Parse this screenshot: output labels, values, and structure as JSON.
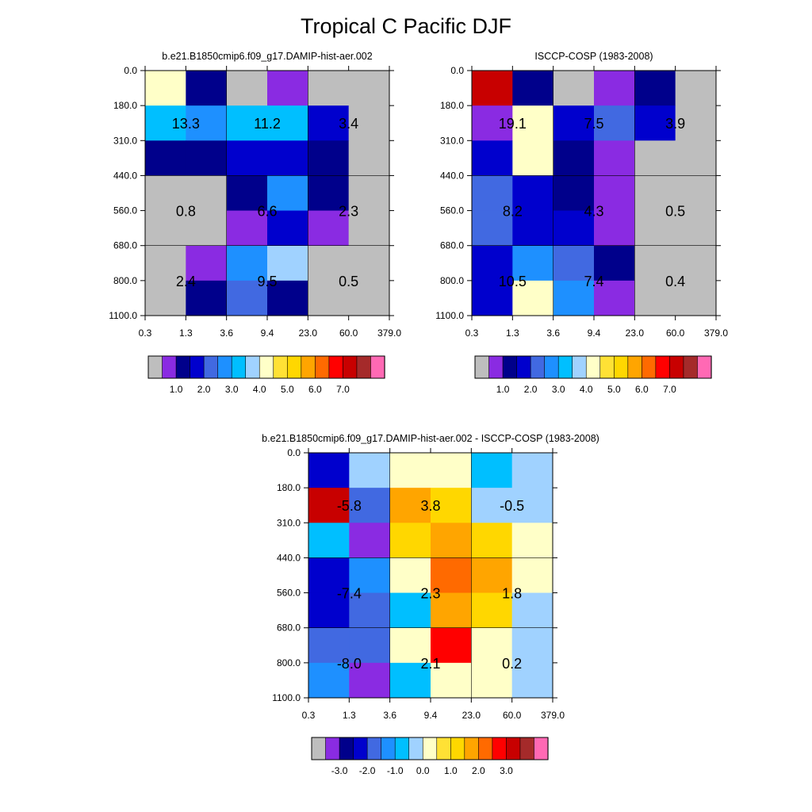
{
  "figure": {
    "title": "Tropical C Pacific DJF"
  },
  "palettes": {
    "main": [
      "#bebebe",
      "#8a2be2",
      "#00008b",
      "#0000cd",
      "#4169e1",
      "#1e90ff",
      "#00bfff",
      "#a0d2ff",
      "#ffffc8",
      "#ffe135",
      "#ffd700",
      "#ffa500",
      "#ff6a00",
      "#ff0000",
      "#c80000",
      "#a52a2a",
      "#ff69b4"
    ],
    "diff": [
      "#bebebe",
      "#8a2be2",
      "#00008b",
      "#0000cd",
      "#4169e1",
      "#1e90ff",
      "#00bfff",
      "#a0d2ff",
      "#ffffc8",
      "#ffe135",
      "#ffd700",
      "#ffa500",
      "#ff6a00",
      "#ff0000",
      "#c80000",
      "#a52a2a",
      "#ff69b4"
    ]
  },
  "colorbars": {
    "main": {
      "tick_labels": [
        "1.0",
        "2.0",
        "3.0",
        "4.0",
        "5.0",
        "6.0",
        "7.0"
      ]
    },
    "diff": {
      "tick_labels": [
        "-3.0",
        "-2.0",
        "-1.0",
        "0.0",
        "1.0",
        "2.0",
        "3.0"
      ]
    }
  },
  "chart_data": [
    {
      "type": "heatmap",
      "title": "b.e21.B1850cmip6.f09_g17.DAMIP-hist-aer.002",
      "x_tick_labels": [
        "0.3",
        "1.3",
        "3.6",
        "9.4",
        "23.0",
        "60.0",
        "379.0"
      ],
      "y_tick_labels": [
        "0.0",
        "180.0",
        "310.0",
        "440.0",
        "560.0",
        "680.0",
        "800.0",
        "1100.0"
      ],
      "grid_on": true,
      "colorbar": "main",
      "cells": [
        [
          8,
          2,
          0,
          1,
          0,
          0
        ],
        [
          6,
          5,
          6,
          6,
          3,
          0
        ],
        [
          2,
          2,
          3,
          3,
          2,
          0
        ],
        [
          0,
          0,
          2,
          5,
          2,
          0
        ],
        [
          0,
          0,
          1,
          3,
          1,
          0
        ],
        [
          0,
          1,
          5,
          7,
          0,
          0
        ],
        [
          0,
          2,
          4,
          2,
          0,
          0
        ]
      ],
      "annotations": [
        {
          "x": 0.8,
          "y": 245,
          "text": "13.3"
        },
        {
          "x": 5.9,
          "y": 245,
          "text": "11.2"
        },
        {
          "x": 37.1,
          "y": 245,
          "text": "3.4"
        },
        {
          "x": 0.8,
          "y": 620,
          "text": "0.8"
        },
        {
          "x": 5.9,
          "y": 620,
          "text": "6.6"
        },
        {
          "x": 37.1,
          "y": 620,
          "text": "2.3"
        },
        {
          "x": 0.8,
          "y": 890,
          "text": "2.4"
        },
        {
          "x": 5.9,
          "y": 890,
          "text": "9.5"
        },
        {
          "x": 37.1,
          "y": 890,
          "text": "0.5"
        }
      ]
    },
    {
      "type": "heatmap",
      "title": "ISCCP-COSP (1983-2008)",
      "x_tick_labels": [
        "0.3",
        "1.3",
        "3.6",
        "9.4",
        "23.0",
        "60.0",
        "379.0"
      ],
      "y_tick_labels": [
        "0.0",
        "180.0",
        "310.0",
        "440.0",
        "560.0",
        "680.0",
        "800.0",
        "1100.0"
      ],
      "grid_on": true,
      "colorbar": "main",
      "cells": [
        [
          14,
          2,
          0,
          1,
          2,
          0
        ],
        [
          1,
          8,
          3,
          4,
          3,
          0
        ],
        [
          3,
          8,
          2,
          1,
          0,
          0
        ],
        [
          4,
          3,
          2,
          1,
          0,
          0
        ],
        [
          4,
          3,
          3,
          1,
          0,
          0
        ],
        [
          3,
          5,
          4,
          2,
          0,
          0
        ],
        [
          3,
          8,
          5,
          1,
          0,
          0
        ]
      ],
      "annotations": [
        {
          "x": 0.8,
          "y": 245,
          "text": "19.1"
        },
        {
          "x": 5.9,
          "y": 245,
          "text": "7.5"
        },
        {
          "x": 37.1,
          "y": 245,
          "text": "3.9"
        },
        {
          "x": 0.8,
          "y": 620,
          "text": "8.2"
        },
        {
          "x": 5.9,
          "y": 620,
          "text": "4.3"
        },
        {
          "x": 37.1,
          "y": 620,
          "text": "0.5"
        },
        {
          "x": 0.8,
          "y": 890,
          "text": "10.5"
        },
        {
          "x": 5.9,
          "y": 890,
          "text": "7.4"
        },
        {
          "x": 37.1,
          "y": 890,
          "text": "0.4"
        }
      ]
    },
    {
      "type": "heatmap",
      "title": "b.e21.B1850cmip6.f09_g17.DAMIP-hist-aer.002 - ISCCP-COSP (1983-2008)",
      "x_tick_labels": [
        "0.3",
        "1.3",
        "3.6",
        "9.4",
        "23.0",
        "60.0",
        "379.0"
      ],
      "y_tick_labels": [
        "0.0",
        "180.0",
        "310.0",
        "440.0",
        "560.0",
        "680.0",
        "800.0",
        "1100.0"
      ],
      "grid_on": true,
      "colorbar": "diff",
      "cells": [
        [
          3,
          7,
          8,
          8,
          6,
          7
        ],
        [
          14,
          4,
          11,
          10,
          7,
          7
        ],
        [
          6,
          1,
          10,
          11,
          10,
          8
        ],
        [
          3,
          5,
          8,
          12,
          11,
          8
        ],
        [
          3,
          4,
          6,
          11,
          10,
          7
        ],
        [
          4,
          4,
          8,
          13,
          8,
          7
        ],
        [
          5,
          1,
          6,
          8,
          8,
          7
        ]
      ],
      "annotations": [
        {
          "x": 0.8,
          "y": 245,
          "text": "-5.8"
        },
        {
          "x": 5.9,
          "y": 245,
          "text": "3.8"
        },
        {
          "x": 37.1,
          "y": 245,
          "text": "-0.5"
        },
        {
          "x": 0.8,
          "y": 620,
          "text": "-7.4"
        },
        {
          "x": 5.9,
          "y": 620,
          "text": "2.3"
        },
        {
          "x": 37.1,
          "y": 620,
          "text": "1.8"
        },
        {
          "x": 0.8,
          "y": 890,
          "text": "-8.0"
        },
        {
          "x": 5.9,
          "y": 890,
          "text": "2.1"
        },
        {
          "x": 37.1,
          "y": 890,
          "text": "0.2"
        }
      ]
    }
  ]
}
